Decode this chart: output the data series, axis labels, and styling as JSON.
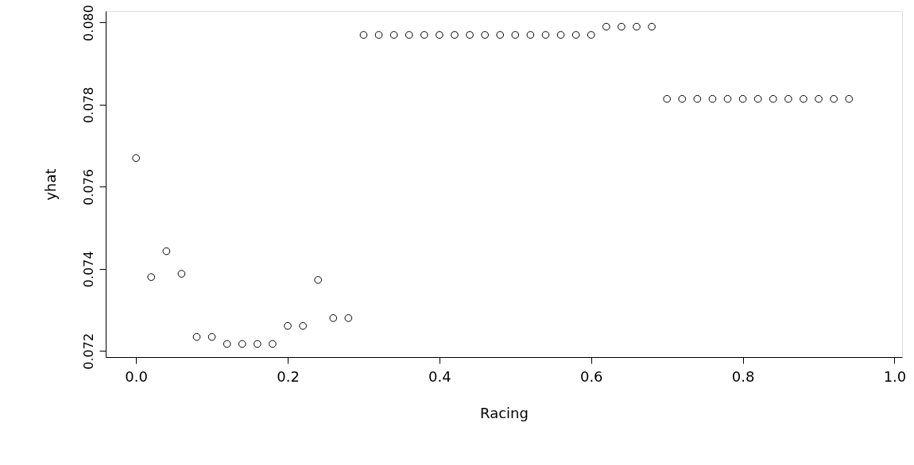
{
  "chart_data": {
    "type": "scatter",
    "xlabel": "Racing",
    "ylabel": "yhat",
    "x": [
      0.0,
      0.02,
      0.04,
      0.06,
      0.08,
      0.1,
      0.12,
      0.14,
      0.16,
      0.18,
      0.2,
      0.22,
      0.24,
      0.26,
      0.28,
      0.3,
      0.32,
      0.34,
      0.36,
      0.38,
      0.4,
      0.42,
      0.44,
      0.46,
      0.48,
      0.5,
      0.52,
      0.54,
      0.56,
      0.58,
      0.6,
      0.62,
      0.64,
      0.66,
      0.68,
      0.7,
      0.72,
      0.74,
      0.76,
      0.78,
      0.8,
      0.82,
      0.84,
      0.86,
      0.88,
      0.9,
      0.92,
      0.94
    ],
    "series": [
      {
        "color": "#000000",
        "values": [
          0.0767,
          0.0738,
          0.07443,
          0.07388,
          0.07234,
          0.07234,
          0.07217,
          0.07217,
          0.07217,
          0.07217,
          0.07261,
          0.07261,
          0.07373,
          0.0728,
          0.0728,
          0.0797,
          0.0797,
          0.0797,
          0.0797,
          0.0797,
          0.0797,
          0.0797,
          0.0797,
          0.0797,
          0.0797,
          0.0797,
          0.0797,
          0.0797,
          0.0797,
          0.0797,
          0.0797,
          0.0799,
          0.0799,
          0.0799,
          0.0799,
          0.07814,
          0.07814,
          0.07814,
          0.07814,
          0.07814,
          0.07814,
          0.07814,
          0.07814,
          0.07814,
          0.07814,
          0.07814,
          0.07814,
          0.07814
        ]
      }
    ],
    "xlim": [
      -0.04,
      1.01
    ],
    "ylim": [
      0.07185,
      0.08028
    ],
    "xticks": [
      {
        "value": 0,
        "label": "0.0"
      },
      {
        "value": 0.2,
        "label": "0.2"
      },
      {
        "value": 0.4,
        "label": "0.4"
      },
      {
        "value": 0.6,
        "label": "0.6"
      },
      {
        "value": 0.8,
        "label": "0.8"
      },
      {
        "value": 1,
        "label": "1.0"
      }
    ],
    "yticks": [
      {
        "value": 0.072,
        "label": "0.072"
      },
      {
        "value": 0.074,
        "label": "0.074"
      },
      {
        "value": 0.076,
        "label": "0.076"
      },
      {
        "value": 0.078,
        "label": "0.078"
      },
      {
        "value": 0.08,
        "label": "0.080"
      }
    ],
    "grid": false,
    "marker": "circle"
  }
}
